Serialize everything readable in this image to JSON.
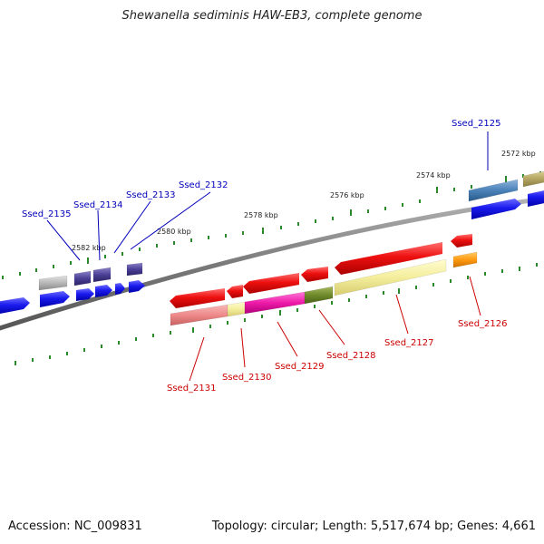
{
  "title": "Shewanella sediminis HAW-EB3, complete genome",
  "footer": {
    "accession": "Accession: NC_009831",
    "topology": "Topology: circular; Length: 5,517,674 bp; Genes: 4,661"
  },
  "scale_labels": [
    "2572 kbp",
    "2574 kbp",
    "2576 kbp",
    "2578 kbp",
    "2580 kbp",
    "2582 kbp"
  ],
  "genes_top_strand": [
    "Ssed_2125",
    "Ssed_2132",
    "Ssed_2133",
    "Ssed_2134",
    "Ssed_2135"
  ],
  "genes_bottom_strand": [
    "Ssed_2126",
    "Ssed_2127",
    "Ssed_2128",
    "Ssed_2129",
    "Ssed_2130",
    "Ssed_2131"
  ],
  "colors": {
    "top_label": "#0000bb",
    "bottom_label": "#cc0000",
    "tick": "#2a8a2a",
    "backbone": "#7a7a7a",
    "cds_blue": "#1010ee",
    "cds_red": "#ee1010"
  }
}
